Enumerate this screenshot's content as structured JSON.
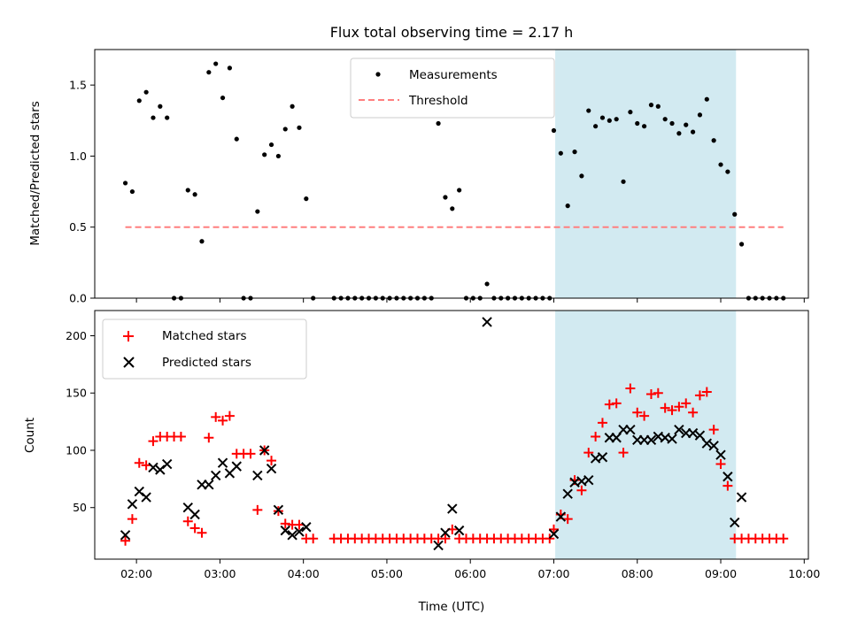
{
  "chart_data": [
    {
      "type": "scatter",
      "title": "Flux total observing time = 2.17 h",
      "ylabel": "Matched/Predicted stars",
      "xlabel": "",
      "ylim": [
        0,
        1.75
      ],
      "xlim_hours": [
        1.5,
        10.05
      ],
      "yticks": [
        0.0,
        0.5,
        1.0,
        1.5
      ],
      "ytick_labels": [
        "0.0",
        "0.5",
        "1.0",
        "1.5"
      ],
      "legend_position": "top-center",
      "highlight_band": {
        "start": "07:01",
        "end": "09:11",
        "color": "#add8e6"
      },
      "series": [
        {
          "name": "Measurements",
          "kind": "dot",
          "color": "#000000",
          "points": [
            [
              "01:52",
              0.81
            ],
            [
              "01:57",
              0.75
            ],
            [
              "02:02",
              1.39
            ],
            [
              "02:07",
              1.45
            ],
            [
              "02:12",
              1.27
            ],
            [
              "02:17",
              1.35
            ],
            [
              "02:22",
              1.27
            ],
            [
              "02:27",
              0.0
            ],
            [
              "02:32",
              0.0
            ],
            [
              "02:37",
              0.76
            ],
            [
              "02:42",
              0.73
            ],
            [
              "02:47",
              0.4
            ],
            [
              "02:52",
              1.59
            ],
            [
              "02:57",
              1.65
            ],
            [
              "03:02",
              1.41
            ],
            [
              "03:07",
              1.62
            ],
            [
              "03:12",
              1.12
            ],
            [
              "03:17",
              0.0
            ],
            [
              "03:22",
              0.0
            ],
            [
              "03:27",
              0.61
            ],
            [
              "03:32",
              1.01
            ],
            [
              "03:37",
              1.08
            ],
            [
              "03:42",
              1.0
            ],
            [
              "03:47",
              1.19
            ],
            [
              "03:52",
              1.35
            ],
            [
              "03:57",
              1.2
            ],
            [
              "04:02",
              0.7
            ],
            [
              "04:07",
              0.0
            ],
            [
              "04:22",
              0.0
            ],
            [
              "04:27",
              0.0
            ],
            [
              "04:32",
              0.0
            ],
            [
              "04:37",
              0.0
            ],
            [
              "04:42",
              0.0
            ],
            [
              "04:47",
              0.0
            ],
            [
              "04:52",
              0.0
            ],
            [
              "04:57",
              0.0
            ],
            [
              "05:02",
              0.0
            ],
            [
              "05:07",
              0.0
            ],
            [
              "05:12",
              0.0
            ],
            [
              "05:17",
              0.0
            ],
            [
              "05:22",
              0.0
            ],
            [
              "05:27",
              0.0
            ],
            [
              "05:32",
              0.0
            ],
            [
              "05:37",
              1.23
            ],
            [
              "05:42",
              0.71
            ],
            [
              "05:47",
              0.63
            ],
            [
              "05:52",
              0.76
            ],
            [
              "05:57",
              0.0
            ],
            [
              "06:02",
              0.0
            ],
            [
              "06:07",
              0.0
            ],
            [
              "06:12",
              0.1
            ],
            [
              "06:17",
              0.0
            ],
            [
              "06:22",
              0.0
            ],
            [
              "06:27",
              0.0
            ],
            [
              "06:32",
              0.0
            ],
            [
              "06:37",
              0.0
            ],
            [
              "06:42",
              0.0
            ],
            [
              "06:47",
              0.0
            ],
            [
              "06:52",
              0.0
            ],
            [
              "06:57",
              0.0
            ],
            [
              "07:00",
              1.18
            ],
            [
              "07:05",
              1.02
            ],
            [
              "07:10",
              0.65
            ],
            [
              "07:15",
              1.03
            ],
            [
              "07:20",
              0.86
            ],
            [
              "07:25",
              1.32
            ],
            [
              "07:30",
              1.21
            ],
            [
              "07:35",
              1.27
            ],
            [
              "07:40",
              1.25
            ],
            [
              "07:45",
              1.26
            ],
            [
              "07:50",
              0.82
            ],
            [
              "07:55",
              1.31
            ],
            [
              "08:00",
              1.23
            ],
            [
              "08:05",
              1.21
            ],
            [
              "08:10",
              1.36
            ],
            [
              "08:15",
              1.35
            ],
            [
              "08:20",
              1.26
            ],
            [
              "08:25",
              1.23
            ],
            [
              "08:30",
              1.16
            ],
            [
              "08:35",
              1.22
            ],
            [
              "08:40",
              1.17
            ],
            [
              "08:45",
              1.29
            ],
            [
              "08:50",
              1.4
            ],
            [
              "08:55",
              1.11
            ],
            [
              "09:00",
              0.94
            ],
            [
              "09:05",
              0.89
            ],
            [
              "09:10",
              0.59
            ],
            [
              "09:15",
              0.38
            ],
            [
              "09:20",
              0.0
            ],
            [
              "09:25",
              0.0
            ],
            [
              "09:30",
              0.0
            ],
            [
              "09:35",
              0.0
            ],
            [
              "09:40",
              0.0
            ],
            [
              "09:45",
              0.0
            ]
          ]
        },
        {
          "name": "Threshold",
          "kind": "dashed-line",
          "color": "#ff7f7f",
          "x": [
            "01:52",
            "09:45"
          ],
          "y": [
            0.5,
            0.5
          ]
        }
      ]
    },
    {
      "type": "scatter",
      "title": "",
      "ylabel": "Count",
      "xlabel": "Time (UTC)",
      "ylim": [
        5,
        222
      ],
      "xlim_hours": [
        1.5,
        10.05
      ],
      "yticks": [
        50,
        100,
        150,
        200
      ],
      "ytick_labels": [
        "50",
        "100",
        "150",
        "200"
      ],
      "xticks": [
        "02:00",
        "03:00",
        "04:00",
        "05:00",
        "06:00",
        "07:00",
        "08:00",
        "09:00",
        "10:00"
      ],
      "legend_position": "top-left",
      "highlight_band": {
        "start": "07:01",
        "end": "09:11",
        "color": "#add8e6"
      },
      "series": [
        {
          "name": "Matched stars",
          "kind": "plus",
          "color": "#ff0000",
          "points": [
            [
              "01:52",
              21
            ],
            [
              "01:57",
              40
            ],
            [
              "02:02",
              89
            ],
            [
              "02:07",
              87
            ],
            [
              "02:12",
              108
            ],
            [
              "02:17",
              112
            ],
            [
              "02:22",
              112
            ],
            [
              "02:27",
              112
            ],
            [
              "02:32",
              112
            ],
            [
              "02:37",
              38
            ],
            [
              "02:42",
              32
            ],
            [
              "02:47",
              28
            ],
            [
              "02:52",
              111
            ],
            [
              "02:57",
              129
            ],
            [
              "03:02",
              126
            ],
            [
              "03:07",
              130
            ],
            [
              "03:12",
              97
            ],
            [
              "03:17",
              97
            ],
            [
              "03:22",
              97
            ],
            [
              "03:27",
              48
            ],
            [
              "03:32",
              100
            ],
            [
              "03:37",
              91
            ],
            [
              "03:42",
              47
            ],
            [
              "03:47",
              36
            ],
            [
              "03:52",
              35
            ],
            [
              "03:57",
              35
            ],
            [
              "04:02",
              23
            ],
            [
              "04:07",
              23
            ],
            [
              "04:22",
              23
            ],
            [
              "04:27",
              23
            ],
            [
              "04:32",
              23
            ],
            [
              "04:37",
              23
            ],
            [
              "04:42",
              23
            ],
            [
              "04:47",
              23
            ],
            [
              "04:52",
              23
            ],
            [
              "04:57",
              23
            ],
            [
              "05:02",
              23
            ],
            [
              "05:07",
              23
            ],
            [
              "05:12",
              23
            ],
            [
              "05:17",
              23
            ],
            [
              "05:22",
              23
            ],
            [
              "05:27",
              23
            ],
            [
              "05:32",
              23
            ],
            [
              "05:37",
              23
            ],
            [
              "05:42",
              23
            ],
            [
              "05:47",
              31
            ],
            [
              "05:52",
              23
            ],
            [
              "05:57",
              23
            ],
            [
              "06:02",
              23
            ],
            [
              "06:07",
              23
            ],
            [
              "06:12",
              23
            ],
            [
              "06:17",
              23
            ],
            [
              "06:22",
              23
            ],
            [
              "06:27",
              23
            ],
            [
              "06:32",
              23
            ],
            [
              "06:37",
              23
            ],
            [
              "06:42",
              23
            ],
            [
              "06:47",
              23
            ],
            [
              "06:52",
              23
            ],
            [
              "06:57",
              23
            ],
            [
              "07:00",
              31
            ],
            [
              "07:05",
              44
            ],
            [
              "07:10",
              40
            ],
            [
              "07:15",
              74
            ],
            [
              "07:20",
              65
            ],
            [
              "07:25",
              98
            ],
            [
              "07:30",
              112
            ],
            [
              "07:35",
              124
            ],
            [
              "07:40",
              140
            ],
            [
              "07:45",
              141
            ],
            [
              "07:50",
              98
            ],
            [
              "07:55",
              154
            ],
            [
              "08:00",
              133
            ],
            [
              "08:05",
              130
            ],
            [
              "08:10",
              149
            ],
            [
              "08:15",
              150
            ],
            [
              "08:20",
              137
            ],
            [
              "08:25",
              135
            ],
            [
              "08:30",
              138
            ],
            [
              "08:35",
              141
            ],
            [
              "08:40",
              133
            ],
            [
              "08:45",
              148
            ],
            [
              "08:50",
              151
            ],
            [
              "08:55",
              118
            ],
            [
              "09:00",
              88
            ],
            [
              "09:05",
              69
            ],
            [
              "09:10",
              23
            ],
            [
              "09:15",
              23
            ],
            [
              "09:20",
              23
            ],
            [
              "09:25",
              23
            ],
            [
              "09:30",
              23
            ],
            [
              "09:35",
              23
            ],
            [
              "09:40",
              23
            ],
            [
              "09:45",
              23
            ]
          ]
        },
        {
          "name": "Predicted stars",
          "kind": "x",
          "color": "#000000",
          "points": [
            [
              "01:52",
              26
            ],
            [
              "01:57",
              53
            ],
            [
              "02:02",
              64
            ],
            [
              "02:07",
              59
            ],
            [
              "02:12",
              85
            ],
            [
              "02:17",
              83
            ],
            [
              "02:22",
              88
            ],
            [
              "02:37",
              50
            ],
            [
              "02:42",
              44
            ],
            [
              "02:47",
              70
            ],
            [
              "02:52",
              70
            ],
            [
              "02:57",
              78
            ],
            [
              "03:02",
              89
            ],
            [
              "03:07",
              80
            ],
            [
              "03:12",
              86
            ],
            [
              "03:27",
              78
            ],
            [
              "03:32",
              100
            ],
            [
              "03:37",
              84
            ],
            [
              "03:42",
              48
            ],
            [
              "03:47",
              30
            ],
            [
              "03:52",
              26
            ],
            [
              "03:57",
              29
            ],
            [
              "04:02",
              33
            ],
            [
              "05:37",
              17
            ],
            [
              "05:42",
              28
            ],
            [
              "05:47",
              49
            ],
            [
              "05:52",
              30
            ],
            [
              "06:12",
              212
            ],
            [
              "07:00",
              27
            ],
            [
              "07:05",
              42
            ],
            [
              "07:10",
              62
            ],
            [
              "07:15",
              72
            ],
            [
              "07:20",
              73
            ],
            [
              "07:25",
              74
            ],
            [
              "07:30",
              93
            ],
            [
              "07:35",
              94
            ],
            [
              "07:40",
              111
            ],
            [
              "07:45",
              111
            ],
            [
              "07:50",
              118
            ],
            [
              "07:55",
              118
            ],
            [
              "08:00",
              109
            ],
            [
              "08:05",
              109
            ],
            [
              "08:10",
              109
            ],
            [
              "08:15",
              112
            ],
            [
              "08:20",
              111
            ],
            [
              "08:25",
              110
            ],
            [
              "08:30",
              118
            ],
            [
              "08:35",
              115
            ],
            [
              "08:40",
              115
            ],
            [
              "08:45",
              113
            ],
            [
              "08:50",
              106
            ],
            [
              "08:55",
              104
            ],
            [
              "09:00",
              96
            ],
            [
              "09:05",
              77
            ],
            [
              "09:10",
              37
            ],
            [
              "09:15",
              59
            ]
          ]
        }
      ]
    }
  ]
}
